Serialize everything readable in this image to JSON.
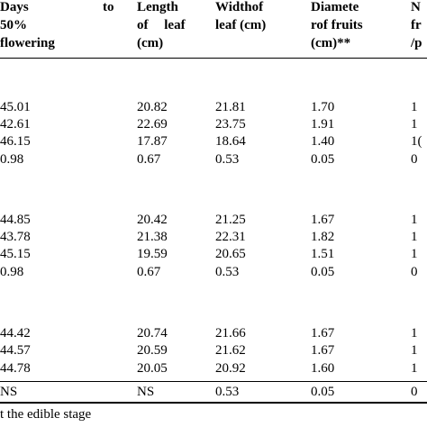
{
  "headers": [
    {
      "line1": "Days",
      "line1b": "to",
      "line2": "50%",
      "line3": "flowering"
    },
    {
      "line1": "Length",
      "line2": "of leaf",
      "line3": "(cm)"
    },
    {
      "line1": "Widthof",
      "line2": "leaf (cm)"
    },
    {
      "line1": "Diamete",
      "line2": "rof fruits",
      "line3": "(cm)**"
    },
    {
      "line1": "N",
      "line2": "fr",
      "line3": "/p"
    }
  ],
  "groups": [
    {
      "rows": [
        [
          "45.01",
          "20.82",
          "21.81",
          "1.70",
          "1"
        ],
        [
          "42.61",
          "22.69",
          "23.75",
          "1.91",
          "1"
        ],
        [
          "46.15",
          "17.87",
          "18.64",
          "1.40",
          "1("
        ],
        [
          "0.98",
          "0.67",
          "0.53",
          "0.05",
          "0"
        ]
      ]
    },
    {
      "rows": [
        [
          "44.85",
          "20.42",
          "21.25",
          "1.67",
          "1"
        ],
        [
          "43.78",
          "21.38",
          "22.31",
          "1.82",
          "1"
        ],
        [
          "45.15",
          "19.59",
          "20.65",
          "1.51",
          "1"
        ],
        [
          "0.98",
          "0.67",
          "0.53",
          "0.05",
          "0"
        ]
      ]
    },
    {
      "rows": [
        [
          "44.42",
          "20.74",
          "21.66",
          "1.67",
          "1"
        ],
        [
          "44.57",
          "20.59",
          "21.62",
          "1.67",
          "1"
        ],
        [
          "44.78",
          "20.05",
          "20.92",
          "1.60",
          "1"
        ]
      ]
    }
  ],
  "final_row": [
    "NS",
    "NS",
    "0.53",
    "0.05",
    "0"
  ],
  "footnote": "t the edible stage"
}
